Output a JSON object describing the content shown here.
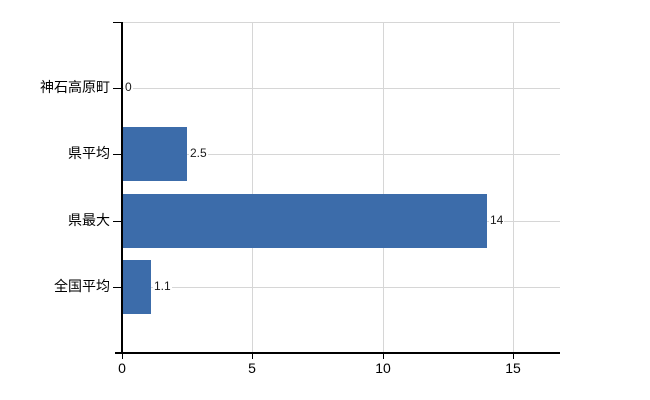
{
  "chart_data": {
    "type": "bar",
    "orientation": "horizontal",
    "title": "",
    "xlabel": "",
    "ylabel": "",
    "categories": [
      "神石高原町",
      "県平均",
      "県最大",
      "全国平均"
    ],
    "values": [
      0,
      2.5,
      14,
      1.1
    ],
    "value_labels": [
      "0",
      "2.5",
      "14",
      "1.1"
    ],
    "x_ticks": [
      0,
      5,
      10,
      15
    ],
    "x_tick_labels": [
      "0",
      "5",
      "10",
      "15"
    ],
    "xlim": [
      0,
      16.8
    ],
    "grid": true,
    "legend": "none",
    "bar_color": "#3c6caa",
    "grid_color": "#d6d6d6",
    "axis_color": "#000000",
    "text_color": "#000000",
    "background_color": "#ffffff"
  }
}
